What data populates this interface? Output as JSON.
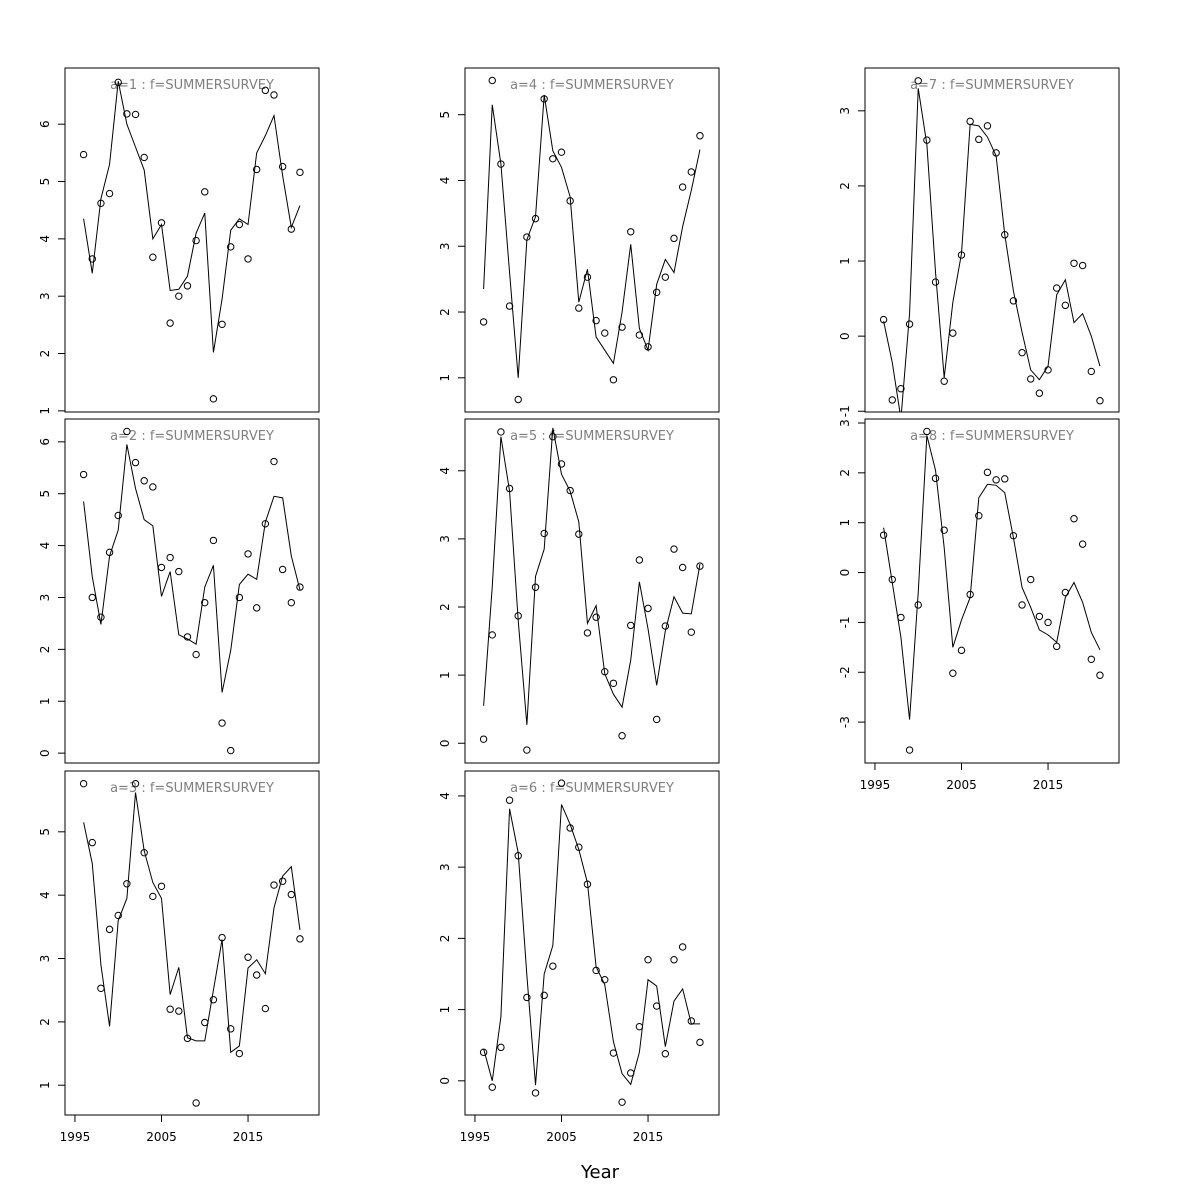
{
  "xlabel": "Year",
  "chart_data": [
    {
      "type": "line",
      "title": "a=1 : f=SUMMERSURVEY",
      "x": [
        1996,
        1997,
        1998,
        1999,
        2000,
        2001,
        2002,
        2003,
        2004,
        2005,
        2006,
        2007,
        2008,
        2009,
        2010,
        2011,
        2012,
        2013,
        2014,
        2015,
        2016,
        2017,
        2018,
        2019,
        2020,
        2021
      ],
      "series": [
        {
          "style": "points",
          "color": "#000000",
          "values": [
            5.47,
            3.65,
            4.62,
            4.79,
            6.73,
            6.18,
            6.17,
            5.42,
            3.68,
            4.28,
            2.53,
            3.0,
            3.18,
            3.97,
            4.82,
            1.21,
            2.51,
            3.86,
            4.25,
            3.65,
            5.21,
            6.59,
            6.51,
            5.26,
            4.17,
            5.16
          ]
        },
        {
          "style": "line",
          "color": "#000000",
          "values": [
            4.35,
            3.4,
            4.7,
            5.3,
            6.75,
            6.0,
            5.6,
            5.2,
            4.0,
            4.25,
            3.1,
            3.12,
            3.35,
            4.1,
            4.45,
            2.02,
            2.95,
            4.15,
            4.35,
            4.25,
            5.5,
            5.8,
            6.15,
            5.1,
            4.2,
            4.58
          ]
        }
      ],
      "xlim": [
        1993.85,
        2023.2
      ],
      "ylim": [
        0.98,
        6.98
      ],
      "yticks": [
        1,
        2,
        3,
        4,
        5,
        6
      ]
    },
    {
      "type": "line",
      "title": "a=2 : f=SUMMERSURVEY",
      "x": [
        1996,
        1997,
        1998,
        1999,
        2000,
        2001,
        2002,
        2003,
        2004,
        2005,
        2006,
        2007,
        2008,
        2009,
        2010,
        2011,
        2012,
        2013,
        2014,
        2015,
        2016,
        2017,
        2018,
        2019,
        2020,
        2021
      ],
      "series": [
        {
          "style": "points",
          "color": "#000000",
          "values": [
            5.37,
            3.0,
            2.62,
            3.87,
            4.58,
            6.2,
            5.6,
            5.25,
            5.13,
            3.58,
            3.77,
            3.5,
            2.24,
            1.9,
            2.9,
            4.1,
            0.58,
            0.05,
            3.0,
            3.84,
            2.8,
            4.42,
            5.62,
            3.54,
            2.9,
            3.2
          ]
        },
        {
          "style": "line",
          "color": "#000000",
          "values": [
            4.85,
            3.4,
            2.48,
            3.8,
            4.3,
            5.95,
            5.1,
            4.5,
            4.38,
            3.02,
            3.5,
            2.28,
            2.2,
            2.1,
            3.2,
            3.62,
            1.17,
            1.98,
            3.25,
            3.45,
            3.35,
            4.45,
            4.95,
            4.92,
            3.8,
            3.15
          ]
        }
      ],
      "xlim": [
        1993.85,
        2023.2
      ],
      "ylim": [
        -0.19,
        6.44
      ],
      "yticks": [
        0,
        1,
        2,
        3,
        4,
        5,
        6
      ]
    },
    {
      "type": "line",
      "title": "a=3 : f=SUMMERSURVEY",
      "x": [
        1996,
        1997,
        1998,
        1999,
        2000,
        2001,
        2002,
        2003,
        2004,
        2005,
        2006,
        2007,
        2008,
        2009,
        2010,
        2011,
        2012,
        2013,
        2014,
        2015,
        2016,
        2017,
        2018,
        2019,
        2020,
        2021
      ],
      "series": [
        {
          "style": "points",
          "color": "#000000",
          "values": [
            5.76,
            4.83,
            2.53,
            3.46,
            3.68,
            4.18,
            5.76,
            4.67,
            3.98,
            4.14,
            2.2,
            2.17,
            1.74,
            0.72,
            1.99,
            2.35,
            3.33,
            1.89,
            1.5,
            3.02,
            2.74,
            2.21,
            4.16,
            4.22,
            4.01,
            3.31
          ]
        },
        {
          "style": "line",
          "color": "#000000",
          "values": [
            5.15,
            4.5,
            2.9,
            1.93,
            3.6,
            3.95,
            5.62,
            4.7,
            4.2,
            3.95,
            2.43,
            2.86,
            1.75,
            1.7,
            1.7,
            2.5,
            3.3,
            1.52,
            1.62,
            2.85,
            2.98,
            2.76,
            3.8,
            4.3,
            4.45,
            3.45
          ]
        }
      ],
      "xlim": [
        1993.85,
        2023.2
      ],
      "ylim": [
        0.53,
        5.96
      ],
      "yticks": [
        1,
        2,
        3,
        4,
        5
      ],
      "xticks": [
        1995,
        2005,
        2015
      ]
    },
    {
      "type": "line",
      "title": "a=4 : f=SUMMERSURVEY",
      "x": [
        1996,
        1997,
        1998,
        1999,
        2000,
        2001,
        2002,
        2003,
        2004,
        2005,
        2006,
        2007,
        2008,
        2009,
        2010,
        2011,
        2012,
        2013,
        2014,
        2015,
        2016,
        2017,
        2018,
        2019,
        2020,
        2021
      ],
      "series": [
        {
          "style": "points",
          "color": "#000000",
          "values": [
            1.85,
            5.52,
            4.25,
            2.09,
            0.67,
            3.14,
            3.42,
            5.24,
            4.33,
            4.43,
            3.69,
            2.06,
            2.53,
            1.87,
            1.68,
            0.97,
            1.77,
            3.22,
            1.65,
            1.47,
            2.3,
            2.53,
            3.12,
            3.9,
            4.13,
            4.68
          ]
        },
        {
          "style": "line",
          "color": "#000000",
          "values": [
            2.35,
            5.15,
            4.25,
            2.6,
            1.0,
            3.1,
            3.45,
            5.3,
            4.45,
            4.2,
            3.75,
            2.15,
            2.65,
            1.62,
            1.42,
            1.22,
            2.0,
            3.03,
            1.75,
            1.42,
            2.42,
            2.8,
            2.6,
            3.3,
            3.85,
            4.47
          ]
        }
      ],
      "xlim": [
        1993.85,
        2023.2
      ],
      "ylim": [
        0.48,
        5.71
      ],
      "yticks": [
        1,
        2,
        3,
        4,
        5
      ]
    },
    {
      "type": "line",
      "title": "a=5 : f=SUMMERSURVEY",
      "x": [
        1996,
        1997,
        1998,
        1999,
        2000,
        2001,
        2002,
        2003,
        2004,
        2005,
        2006,
        2007,
        2008,
        2009,
        2010,
        2011,
        2012,
        2013,
        2014,
        2015,
        2016,
        2017,
        2018,
        2019,
        2020,
        2021
      ],
      "series": [
        {
          "style": "points",
          "color": "#000000",
          "values": [
            0.06,
            1.59,
            4.57,
            3.74,
            1.87,
            -0.1,
            2.29,
            3.08,
            4.5,
            4.1,
            3.71,
            3.07,
            1.62,
            1.85,
            1.05,
            0.88,
            0.11,
            1.73,
            2.69,
            1.98,
            0.35,
            1.72,
            2.85,
            2.58,
            1.63,
            2.6
          ]
        },
        {
          "style": "line",
          "color": "#000000",
          "values": [
            0.55,
            2.3,
            4.5,
            3.7,
            1.8,
            0.27,
            2.45,
            2.85,
            4.63,
            3.95,
            3.7,
            3.25,
            1.76,
            2.02,
            1.02,
            0.72,
            0.53,
            1.22,
            2.37,
            1.68,
            0.85,
            1.65,
            2.15,
            1.91,
            1.9,
            2.63
          ]
        }
      ],
      "xlim": [
        1993.85,
        2023.2
      ],
      "ylim": [
        -0.29,
        4.76
      ],
      "yticks": [
        0,
        1,
        2,
        3,
        4
      ]
    },
    {
      "type": "line",
      "title": "a=6 : f=SUMMERSURVEY",
      "x": [
        1996,
        1997,
        1998,
        1999,
        2000,
        2001,
        2002,
        2003,
        2004,
        2005,
        2006,
        2007,
        2008,
        2009,
        2010,
        2011,
        2012,
        2013,
        2014,
        2015,
        2016,
        2017,
        2018,
        2019,
        2020,
        2021
      ],
      "series": [
        {
          "style": "points",
          "color": "#000000",
          "values": [
            0.4,
            -0.09,
            0.47,
            3.94,
            3.16,
            1.17,
            -0.17,
            1.2,
            1.61,
            4.18,
            3.55,
            3.28,
            2.76,
            1.55,
            1.42,
            0.39,
            -0.3,
            0.11,
            0.76,
            1.7,
            1.05,
            0.38,
            1.7,
            1.88,
            0.84,
            0.54
          ]
        },
        {
          "style": "line",
          "color": "#000000",
          "values": [
            0.45,
            0.0,
            0.9,
            3.82,
            3.2,
            1.48,
            -0.06,
            1.5,
            1.9,
            3.88,
            3.6,
            3.25,
            2.78,
            1.6,
            1.35,
            0.55,
            0.1,
            -0.05,
            0.4,
            1.42,
            1.33,
            0.48,
            1.12,
            1.29,
            0.8,
            0.8
          ]
        }
      ],
      "xlim": [
        1993.85,
        2023.2
      ],
      "ylim": [
        -0.48,
        4.35
      ],
      "yticks": [
        0,
        1,
        2,
        3,
        4
      ],
      "xticks": [
        1995,
        2005,
        2015
      ]
    },
    {
      "type": "line",
      "title": "a=7 : f=SUMMERSURVEY",
      "x": [
        1996,
        1997,
        1998,
        1999,
        2000,
        2001,
        2002,
        2003,
        2004,
        2005,
        2006,
        2007,
        2008,
        2009,
        2010,
        2011,
        2012,
        2013,
        2014,
        2015,
        2016,
        2017,
        2018,
        2019,
        2020,
        2021
      ],
      "series": [
        {
          "style": "points",
          "color": "#000000",
          "values": [
            0.22,
            -0.85,
            -0.7,
            0.16,
            3.4,
            2.61,
            0.72,
            -0.6,
            0.04,
            1.08,
            2.86,
            2.62,
            2.8,
            2.44,
            1.35,
            0.47,
            -0.22,
            -0.57,
            -0.76,
            -0.45,
            0.64,
            0.41,
            0.97,
            0.94,
            -0.47,
            -0.86
          ]
        },
        {
          "style": "line",
          "color": "#000000",
          "values": [
            0.2,
            -0.35,
            -1.1,
            0.3,
            3.3,
            2.55,
            0.85,
            -0.55,
            0.45,
            1.1,
            2.82,
            2.8,
            2.65,
            2.4,
            1.35,
            0.6,
            0.05,
            -0.45,
            -0.58,
            -0.4,
            0.55,
            0.75,
            0.18,
            0.3,
            0.0,
            -0.4
          ]
        }
      ],
      "xlim": [
        1993.85,
        2023.2
      ],
      "ylim": [
        -1.01,
        3.57
      ],
      "yticks": [
        -1,
        0,
        1,
        2,
        3
      ]
    },
    {
      "type": "line",
      "title": "a=8 : f=SUMMERSURVEY",
      "x": [
        1996,
        1997,
        1998,
        1999,
        2000,
        2001,
        2002,
        2003,
        2004,
        2005,
        2006,
        2007,
        2008,
        2009,
        2010,
        2011,
        2012,
        2013,
        2014,
        2015,
        2016,
        2017,
        2018,
        2019,
        2020,
        2021
      ],
      "series": [
        {
          "style": "points",
          "color": "#000000",
          "values": [
            0.75,
            -0.14,
            -0.9,
            -3.56,
            -0.65,
            2.83,
            1.89,
            0.85,
            -2.02,
            -1.56,
            -0.44,
            1.14,
            2.01,
            1.86,
            1.88,
            0.74,
            -0.65,
            -0.14,
            -0.88,
            -1.0,
            -1.48,
            -0.4,
            1.08,
            0.57,
            -1.74,
            -2.06
          ]
        },
        {
          "style": "line",
          "color": "#000000",
          "values": [
            0.9,
            -0.2,
            -1.3,
            -2.95,
            -0.4,
            2.75,
            2.05,
            0.5,
            -1.5,
            -0.95,
            -0.5,
            1.5,
            1.77,
            1.75,
            1.6,
            0.7,
            -0.3,
            -0.7,
            -1.15,
            -1.25,
            -1.4,
            -0.5,
            -0.2,
            -0.6,
            -1.2,
            -1.55
          ]
        }
      ],
      "xlim": [
        1993.85,
        2023.2
      ],
      "ylim": [
        -3.82,
        3.08
      ],
      "yticks": [
        -3,
        -2,
        -1,
        0,
        1,
        2,
        3
      ],
      "xticks": [
        1995,
        2005,
        2015
      ]
    }
  ]
}
